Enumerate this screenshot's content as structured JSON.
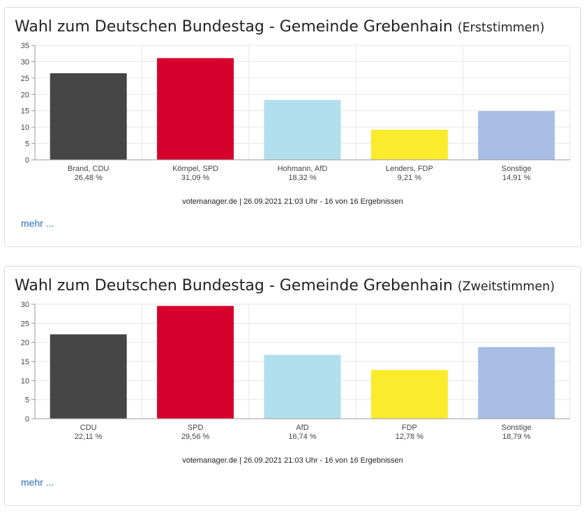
{
  "charts": [
    {
      "title": "Wahl zum Deutschen Bundestag - Gemeinde Grebenhain",
      "subtitle": "(Erststimmen)",
      "source": "votemanager.de | 26.09.2021 21:03 Uhr - 16 von 16 Ergebnissen",
      "more_label": "mehr ...",
      "chart_data": {
        "type": "bar",
        "categories": [
          "Brand, CDU",
          "Kömpel, SPD",
          "Hohmann, AfD",
          "Lenders, FDP",
          "Sonstige"
        ],
        "values": [
          26.48,
          31.09,
          18.32,
          9.21,
          14.91
        ],
        "value_labels": [
          "26,48 %",
          "31,09 %",
          "18,32 %",
          "9,21 %",
          "14,91 %"
        ],
        "colors": [
          "#464646",
          "#d7002c",
          "#b1dfed",
          "#fbeb2d",
          "#a8bde4"
        ],
        "ylim": [
          0,
          35
        ],
        "yticks": [
          0,
          5,
          10,
          15,
          20,
          25,
          30,
          35
        ],
        "grid": true
      }
    },
    {
      "title": "Wahl zum Deutschen Bundestag - Gemeinde Grebenhain",
      "subtitle": "(Zweitstimmen)",
      "source": "votemanager.de | 26.09.2021 21:03 Uhr - 16 von 16 Ergebnissen",
      "more_label": "mehr ...",
      "chart_data": {
        "type": "bar",
        "categories": [
          "CDU",
          "SPD",
          "AfD",
          "FDP",
          "Sonstige"
        ],
        "values": [
          22.11,
          29.56,
          16.74,
          12.78,
          18.79
        ],
        "value_labels": [
          "22,11 %",
          "29,56 %",
          "16,74 %",
          "12,78 %",
          "18,79 %"
        ],
        "colors": [
          "#464646",
          "#d7002c",
          "#b1dfed",
          "#fbeb2d",
          "#a8bde4"
        ],
        "ylim": [
          0,
          30
        ],
        "yticks": [
          0,
          5,
          10,
          15,
          20,
          25,
          30
        ],
        "grid": true
      }
    }
  ]
}
